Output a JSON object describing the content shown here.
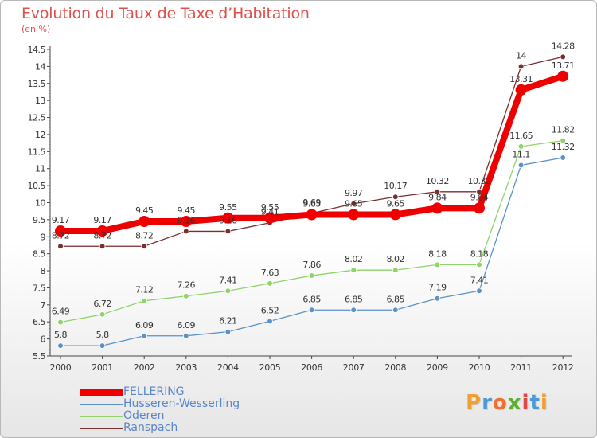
{
  "title": "Evolution du Taux de Taxe d’Habitation",
  "subtitle": "(en %)",
  "logo": {
    "text": "Proxiti",
    "colors": [
      "#f0a030",
      "#4a9ad8",
      "#f07030",
      "#5cb030",
      "#e04848",
      "#4a9ad8",
      "#f0a030"
    ]
  },
  "chart_data": {
    "type": "line",
    "title": "Evolution du Taux de Taxe d’Habitation",
    "ylabel": "(en %)",
    "xlabel": "",
    "ylim": [
      5.5,
      14.5
    ],
    "x": [
      "2000",
      "2001",
      "2002",
      "2003",
      "2004",
      "2005",
      "2006",
      "2007",
      "2008",
      "2009",
      "2010",
      "2011",
      "2012"
    ],
    "yticks": [
      "5.5",
      "6",
      "6.5",
      "7",
      "7.5",
      "8",
      "8.5",
      "9",
      "9.5",
      "10",
      "10.5",
      "11",
      "11.5",
      "12",
      "12.5",
      "13",
      "13.5",
      "14",
      "14.5"
    ],
    "grid": false,
    "legend_position": "bottom-left",
    "series": [
      {
        "name": "FELLERING",
        "color": "#ee0000",
        "values": [
          9.17,
          9.17,
          9.45,
          9.45,
          9.55,
          9.55,
          9.65,
          9.65,
          9.65,
          9.84,
          9.84,
          13.31,
          13.71
        ],
        "labels": [
          "9.17",
          "9.17",
          "9.45",
          "9.45",
          "9.55",
          "9.55",
          "9.65",
          "9.65",
          "9.65",
          "9.84",
          "9.84",
          "13.31",
          "13.71"
        ]
      },
      {
        "name": "Husseren-Wesserling",
        "color": "#5a93c8",
        "values": [
          5.8,
          5.8,
          6.09,
          6.09,
          6.21,
          6.52,
          6.85,
          6.85,
          6.85,
          7.19,
          7.41,
          11.1,
          11.32
        ],
        "labels": [
          "5.8",
          "5.8",
          "6.09",
          "6.09",
          "6.21",
          "6.52",
          "6.85",
          "6.85",
          "6.85",
          "7.19",
          "7.41",
          "11.1",
          "11.32"
        ]
      },
      {
        "name": "Oderen",
        "color": "#8ed468",
        "values": [
          6.49,
          6.72,
          7.12,
          7.26,
          7.41,
          7.63,
          7.86,
          8.02,
          8.02,
          8.18,
          8.18,
          11.65,
          11.82
        ],
        "labels": [
          "6.49",
          "6.72",
          "7.12",
          "7.26",
          "7.41",
          "7.63",
          "7.86",
          "8.02",
          "8.02",
          "8.18",
          "8.18",
          "11.65",
          "11.82"
        ]
      },
      {
        "name": "Ranspach",
        "color": "#7a2e2e",
        "values": [
          8.72,
          8.72,
          8.72,
          9.16,
          9.16,
          9.41,
          9.69,
          9.97,
          10.17,
          10.32,
          10.32,
          14.0,
          14.28
        ],
        "labels": [
          "8.72",
          "8.72",
          "8.72",
          "9.16",
          "9.16",
          "9.41",
          "9.69",
          "9.97",
          "10.17",
          "10.32",
          "10.32",
          "14",
          "14.28"
        ]
      }
    ]
  }
}
